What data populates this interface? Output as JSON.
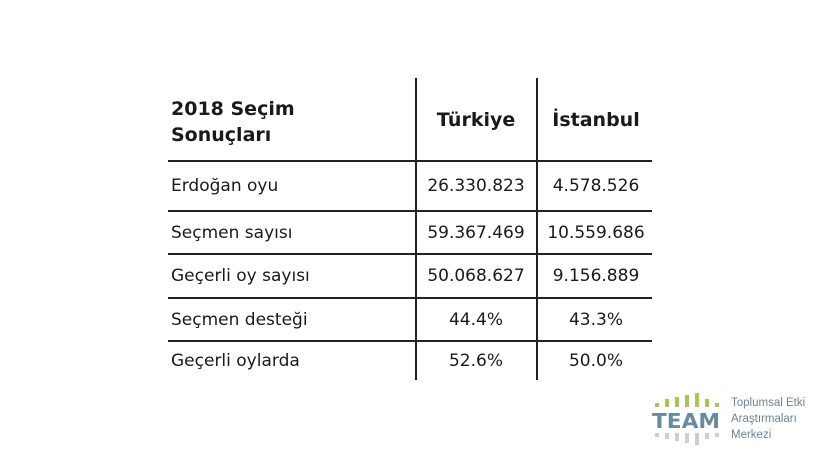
{
  "table": {
    "title": "2018 Seçim Sonuçları",
    "columns": [
      "Türkiye",
      "İstanbul"
    ],
    "rows": [
      {
        "label": "Erdoğan oyu",
        "values": [
          "26.330.823",
          "4.578.526"
        ]
      },
      {
        "label": "Seçmen sayısı",
        "values": [
          "59.367.469",
          "10.559.686"
        ]
      },
      {
        "label": "Geçerli oy sayısı",
        "values": [
          "50.068.627",
          "9.156.889"
        ]
      },
      {
        "label": "Seçmen desteği",
        "values": [
          "44.4%",
          "43.3%"
        ]
      },
      {
        "label": "Geçerli oylarda",
        "values": [
          "52.6%",
          "50.0%"
        ]
      }
    ]
  },
  "logo": {
    "mark": "TEAM",
    "lines": [
      "Toplumsal Etki",
      "Araştırmaları",
      "Merkezi"
    ],
    "colors": {
      "green": "#a6c65a",
      "blue": "#6a8aa0",
      "grey": "#c8d0d6"
    }
  }
}
